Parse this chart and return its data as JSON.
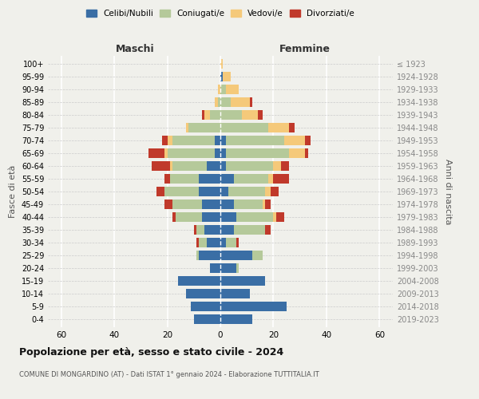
{
  "age_groups": [
    "0-4",
    "5-9",
    "10-14",
    "15-19",
    "20-24",
    "25-29",
    "30-34",
    "35-39",
    "40-44",
    "45-49",
    "50-54",
    "55-59",
    "60-64",
    "65-69",
    "70-74",
    "75-79",
    "80-84",
    "85-89",
    "90-94",
    "95-99",
    "100+"
  ],
  "birth_years": [
    "2019-2023",
    "2014-2018",
    "2009-2013",
    "2004-2008",
    "1999-2003",
    "1994-1998",
    "1989-1993",
    "1984-1988",
    "1979-1983",
    "1974-1978",
    "1969-1973",
    "1964-1968",
    "1959-1963",
    "1954-1958",
    "1949-1953",
    "1944-1948",
    "1939-1943",
    "1934-1938",
    "1929-1933",
    "1924-1928",
    "≤ 1923"
  ],
  "maschi": {
    "celibe": [
      10,
      11,
      13,
      16,
      4,
      8,
      5,
      6,
      7,
      7,
      8,
      8,
      5,
      2,
      2,
      0,
      0,
      0,
      0,
      0,
      0
    ],
    "coniugato": [
      0,
      0,
      0,
      0,
      0,
      1,
      3,
      3,
      10,
      11,
      13,
      11,
      13,
      18,
      16,
      12,
      4,
      1,
      0,
      0,
      0
    ],
    "vedovo": [
      0,
      0,
      0,
      0,
      0,
      0,
      0,
      0,
      0,
      0,
      0,
      0,
      1,
      1,
      2,
      1,
      2,
      1,
      1,
      0,
      0
    ],
    "divorziato": [
      0,
      0,
      0,
      0,
      0,
      0,
      1,
      1,
      1,
      3,
      3,
      2,
      7,
      6,
      2,
      0,
      1,
      0,
      0,
      0,
      0
    ]
  },
  "femmine": {
    "nubile": [
      12,
      25,
      11,
      17,
      6,
      12,
      2,
      5,
      6,
      5,
      3,
      5,
      2,
      2,
      2,
      0,
      0,
      0,
      0,
      1,
      0
    ],
    "coniugata": [
      0,
      0,
      0,
      0,
      1,
      4,
      4,
      12,
      14,
      11,
      14,
      13,
      18,
      24,
      22,
      18,
      8,
      4,
      2,
      0,
      0
    ],
    "vedova": [
      0,
      0,
      0,
      0,
      0,
      0,
      0,
      0,
      1,
      1,
      2,
      2,
      3,
      6,
      8,
      8,
      6,
      7,
      5,
      3,
      1
    ],
    "divorziata": [
      0,
      0,
      0,
      0,
      0,
      0,
      1,
      2,
      3,
      2,
      3,
      6,
      3,
      1,
      2,
      2,
      2,
      1,
      0,
      0,
      0
    ]
  },
  "colors": {
    "celibe": "#3a6ea5",
    "coniugato": "#b5c99a",
    "vedovo": "#f5c97a",
    "divorziato": "#c0392b"
  },
  "title": "Popolazione per età, sesso e stato civile - 2024",
  "subtitle": "COMUNE DI MONGARDINO (AT) - Dati ISTAT 1° gennaio 2024 - Elaborazione TUTTITALIA.IT",
  "xlabel_left": "Maschi",
  "xlabel_right": "Femmine",
  "ylabel_left": "Fasce di età",
  "ylabel_right": "Anni di nascita",
  "xlim": 65,
  "legend_labels": [
    "Celibi/Nubili",
    "Coniugati/e",
    "Vedovi/e",
    "Divorziati/e"
  ],
  "bg_color": "#f0f0eb"
}
